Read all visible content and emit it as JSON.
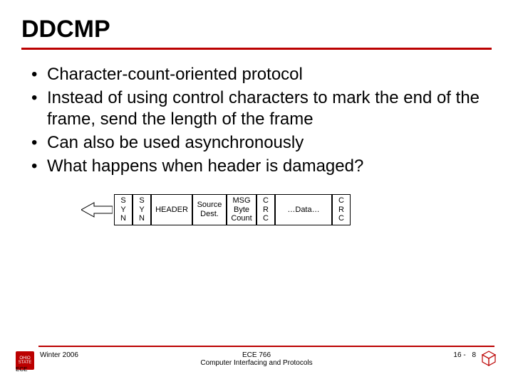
{
  "title": "DDCMP",
  "bullets": [
    "Character-count-oriented protocol",
    "Instead of using control characters to mark the end of the frame, send the length of the frame",
    "Can also be used asynchronously",
    "What happens when header is damaged?"
  ],
  "frame": {
    "cells": [
      {
        "lines": [
          "S",
          "Y",
          "N"
        ],
        "class": "cell-syn"
      },
      {
        "lines": [
          "S",
          "Y",
          "N"
        ],
        "class": "cell-syn"
      },
      {
        "lines": [
          "HEADER"
        ],
        "class": "cell-header"
      },
      {
        "lines": [
          "Source",
          "Dest."
        ],
        "class": "cell-source"
      },
      {
        "lines": [
          "MSG",
          "Byte",
          "Count"
        ],
        "class": "cell-msg"
      },
      {
        "lines": [
          "C",
          "R",
          "C"
        ],
        "class": "cell-crc"
      },
      {
        "lines": [
          "…Data…"
        ],
        "class": "cell-data"
      },
      {
        "lines": [
          "C",
          "R",
          "C"
        ],
        "class": "cell-crc"
      }
    ]
  },
  "footer": {
    "left_term": "Winter 2006",
    "dept": "ECE",
    "center_line1": "ECE 766",
    "center_line2": "Computer Interfacing and Protocols",
    "page_prefix": "16 -",
    "page_num": "8",
    "logo_left_text": "OHIO STATE"
  },
  "colors": {
    "accent": "#bb0000",
    "text": "#000000",
    "bg": "#ffffff"
  }
}
